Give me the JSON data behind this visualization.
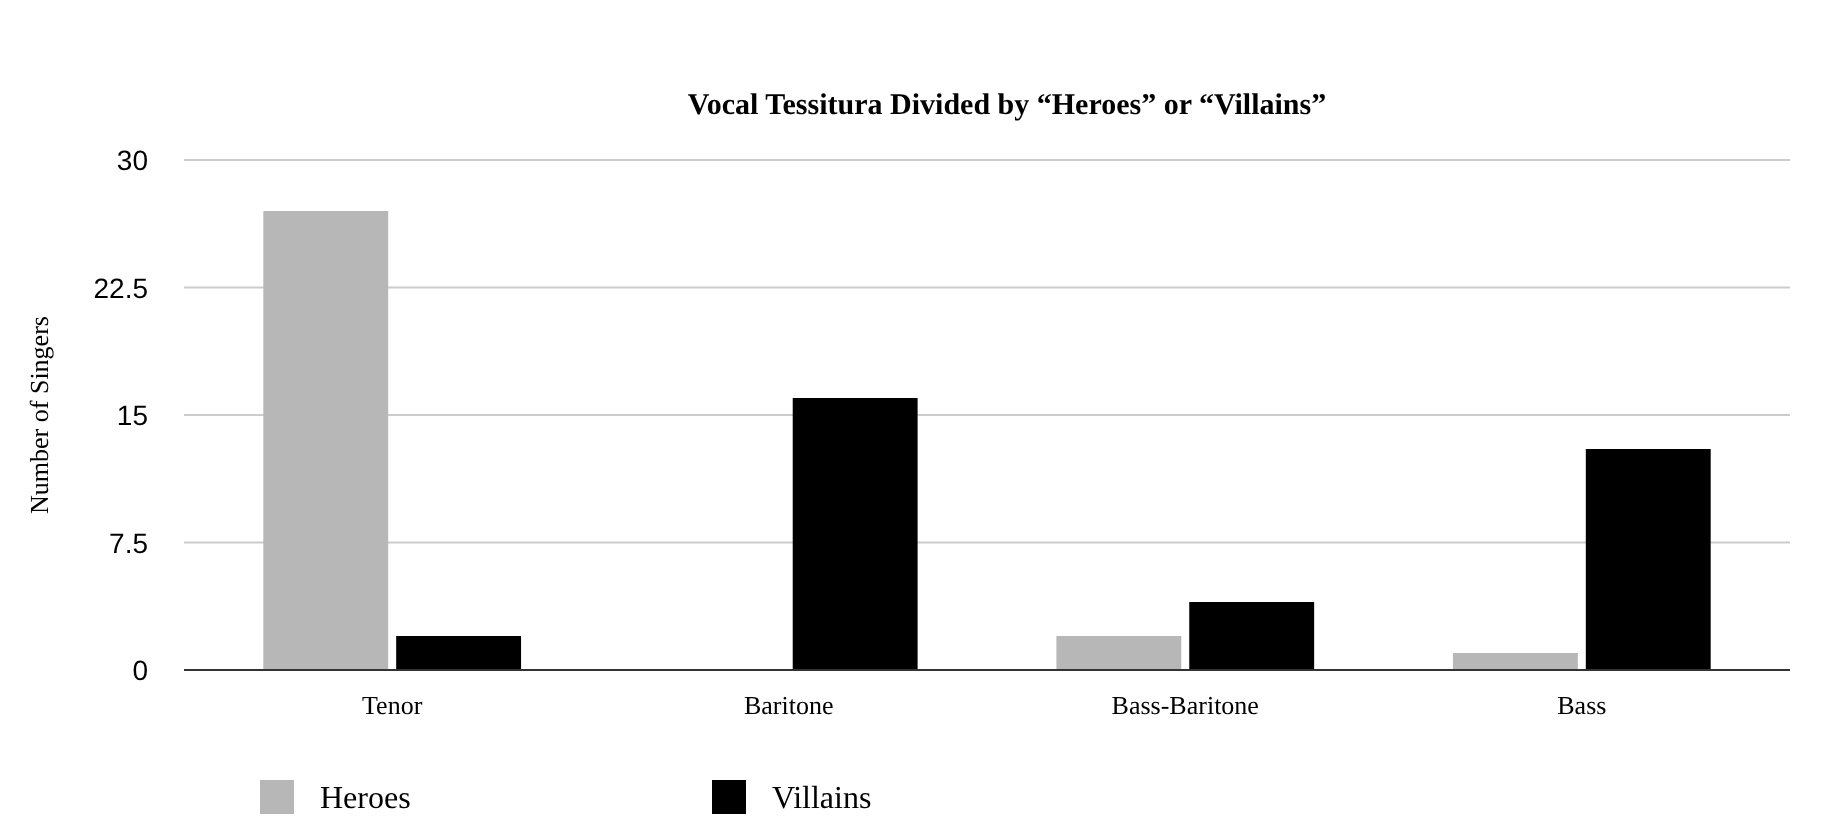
{
  "chart_data": {
    "type": "bar",
    "title": "Vocal Tessitura Divided by “Heroes” or “Villains”",
    "ylabel": "Number of Singers",
    "categories": [
      "Tenor",
      "Baritone",
      "Bass-Baritone",
      "Bass"
    ],
    "series": [
      {
        "name": "Heroes",
        "color": "#b7b7b7",
        "values": [
          27,
          0,
          2,
          1
        ]
      },
      {
        "name": "Villains",
        "color": "#000000",
        "values": [
          2,
          16,
          4,
          13
        ]
      }
    ],
    "ylim": [
      0,
      30
    ],
    "yticks": [
      0,
      7.5,
      15,
      22.5,
      30
    ],
    "grid": "y",
    "legend": "bottom"
  }
}
